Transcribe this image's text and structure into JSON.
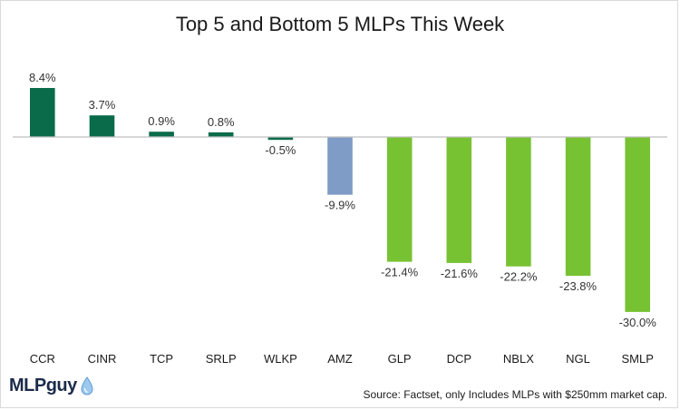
{
  "chart_data": {
    "type": "bar",
    "title": "Top 5 and Bottom 5 MLPs This Week",
    "categories": [
      "CCR",
      "CINR",
      "TCP",
      "SRLP",
      "WLKP",
      "AMZ",
      "GLP",
      "DCP",
      "NBLX",
      "NGL",
      "SMLP"
    ],
    "values": [
      8.4,
      3.7,
      0.9,
      0.8,
      -0.5,
      -9.9,
      -21.4,
      -21.6,
      -22.2,
      -23.8,
      -30.0
    ],
    "value_labels": [
      "8.4%",
      "3.7%",
      "0.9%",
      "0.8%",
      "-0.5%",
      "-9.9%",
      "-21.4%",
      "-21.6%",
      "-22.2%",
      "-23.8%",
      "-30.0%"
    ],
    "bar_colors": [
      "#0a6b4b",
      "#0a6b4b",
      "#0a6b4b",
      "#0a6b4b",
      "#0a6b4b",
      "#7f9cc7",
      "#77c232",
      "#77c232",
      "#77c232",
      "#77c232",
      "#77c232"
    ],
    "ylim": [
      -30.0,
      8.4
    ],
    "xlabel": "",
    "ylabel": "",
    "grid": false,
    "legend": "none"
  },
  "footer": {
    "logo_text": "MLPguy",
    "source": "Source: Factset, only Includes MLPs with $250mm market cap."
  }
}
